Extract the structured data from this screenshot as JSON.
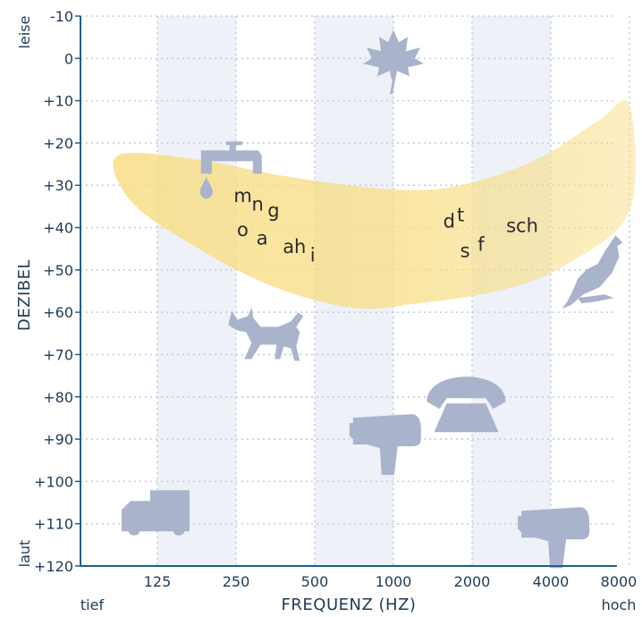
{
  "chart_data": {
    "type": "area",
    "title": "",
    "xlabel": "FREQUENZ (HZ)",
    "ylabel": "DEZIBEL",
    "x_ticks": [
      "125",
      "250",
      "500",
      "1000",
      "2000",
      "4000",
      "8000"
    ],
    "y_ticks": [
      "-10",
      "0",
      "+10",
      "+20",
      "+30",
      "+40",
      "+50",
      "+60",
      "+70",
      "+80",
      "+90",
      "+100",
      "+110",
      "+120"
    ],
    "ylim": [
      -10,
      120
    ],
    "y_inverted": true,
    "x_low_label": "tief",
    "x_high_label": "hoch",
    "y_top_label": "leise",
    "y_bottom_label": "laut",
    "grid": true,
    "speech_banana": {
      "color": "#f8de86",
      "upper": [
        {
          "hz": 88,
          "db": 23
        },
        {
          "hz": 180,
          "db": 24
        },
        {
          "hz": 400,
          "db": 28
        },
        {
          "hz": 1000,
          "db": 31
        },
        {
          "hz": 1800,
          "db": 30
        },
        {
          "hz": 3500,
          "db": 24
        },
        {
          "hz": 6000,
          "db": 15
        },
        {
          "hz": 8000,
          "db": 11
        }
      ],
      "lower": [
        {
          "hz": 8000,
          "db": 36
        },
        {
          "hz": 4500,
          "db": 49
        },
        {
          "hz": 2500,
          "db": 55
        },
        {
          "hz": 1200,
          "db": 58
        },
        {
          "hz": 700,
          "db": 59
        },
        {
          "hz": 350,
          "db": 54
        },
        {
          "hz": 180,
          "db": 45
        },
        {
          "hz": 100,
          "db": 34
        }
      ]
    },
    "speech_sounds": [
      {
        "text": "m",
        "hz": 245,
        "db": 34
      },
      {
        "text": "n",
        "hz": 287,
        "db": 36
      },
      {
        "text": "g",
        "hz": 330,
        "db": 37.5
      },
      {
        "text": "o",
        "hz": 252,
        "db": 42
      },
      {
        "text": "a",
        "hz": 299,
        "db": 44
      },
      {
        "text": "ah",
        "hz": 377,
        "db": 46
      },
      {
        "text": "i",
        "hz": 480,
        "db": 48
      },
      {
        "text": "d",
        "hz": 1550,
        "db": 40
      },
      {
        "text": "t",
        "hz": 1750,
        "db": 38.5
      },
      {
        "text": "s",
        "hz": 1800,
        "db": 47
      },
      {
        "text": "f",
        "hz": 2100,
        "db": 45.5
      },
      {
        "text": "sch",
        "hz": 2700,
        "db": 41
      }
    ],
    "icons": [
      {
        "name": "leaf-icon",
        "hz": 1000,
        "db": 0
      },
      {
        "name": "faucet-icon",
        "hz": 240,
        "db": 26
      },
      {
        "name": "bird-icon",
        "hz": 5500,
        "db": 52
      },
      {
        "name": "dog-icon",
        "hz": 320,
        "db": 66
      },
      {
        "name": "telephone-icon",
        "hz": 1900,
        "db": 82
      },
      {
        "name": "hair-dryer-icon",
        "hz": 930,
        "db": 90
      },
      {
        "name": "truck-icon",
        "hz": 125,
        "db": 108
      },
      {
        "name": "hair-dryer-icon",
        "hz": 4100,
        "db": 112
      }
    ],
    "colors": {
      "axis": "#1f5f8b",
      "grid": "#c4cde0",
      "band": "#eef1f8",
      "icon": "#a9b3cc",
      "text": "#1f3b57"
    }
  }
}
